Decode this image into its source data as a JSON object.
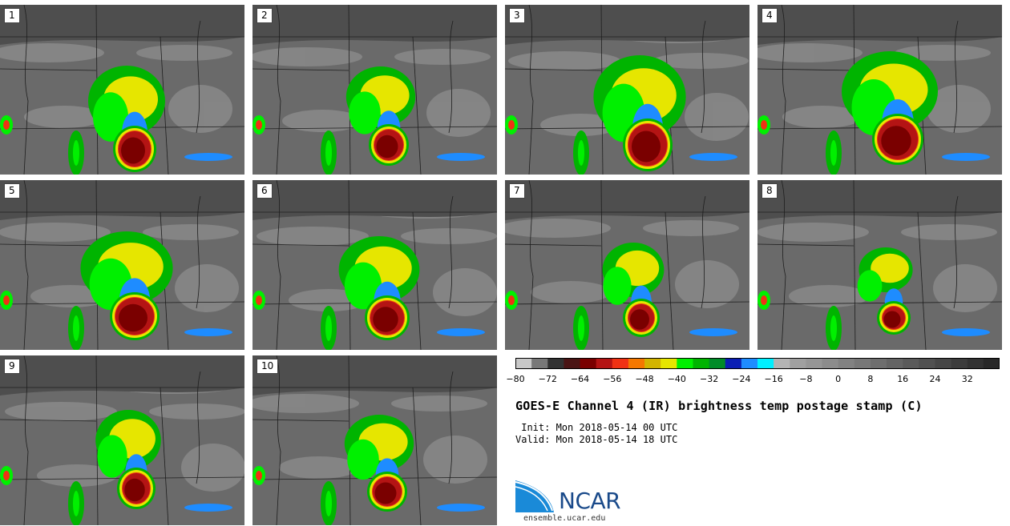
{
  "stamps": [
    {
      "label": "1",
      "core": [
        168,
        180,
        20,
        22
      ]
    },
    {
      "label": "2",
      "core": [
        170,
        175,
        18,
        19
      ]
    },
    {
      "label": "3",
      "core": [
        178,
        175,
        24,
        26
      ]
    },
    {
      "label": "4",
      "core": [
        175,
        168,
        25,
        25
      ]
    },
    {
      "label": "5",
      "core": [
        168,
        170,
        24,
        23
      ]
    },
    {
      "label": "6",
      "core": [
        168,
        172,
        21,
        21
      ]
    },
    {
      "label": "7",
      "core": [
        170,
        172,
        16,
        17
      ]
    },
    {
      "label": "8",
      "core": [
        170,
        172,
        14,
        14
      ]
    },
    {
      "label": "9",
      "core": [
        170,
        166,
        17,
        19
      ]
    },
    {
      "label": "10",
      "core": [
        168,
        170,
        18,
        18
      ]
    }
  ],
  "colorbar": {
    "min": -80,
    "max": 40,
    "step": 4,
    "ticks": [
      "−80",
      "−72",
      "−64",
      "−56",
      "−48",
      "−40",
      "−32",
      "−24",
      "−16",
      "−8",
      "0",
      "8",
      "16",
      "24",
      "32"
    ],
    "tick_values": [
      -80,
      -72,
      -64,
      -56,
      -48,
      -40,
      -32,
      -24,
      -16,
      -8,
      0,
      8,
      16,
      24,
      32
    ],
    "colors": [
      "#c8c8c8",
      "#787878",
      "#323232",
      "#4a1414",
      "#7a0000",
      "#b41414",
      "#f03214",
      "#f57800",
      "#d2b400",
      "#e6e600",
      "#00f000",
      "#00b400",
      "#008c28",
      "#0a1eb4",
      "#1e8cff",
      "#00f0ff",
      "#b4b4b4",
      "#a0a0a0",
      "#969696",
      "#8c8c8c",
      "#828282",
      "#787878",
      "#6e6e6e",
      "#646464",
      "#5a5a5a",
      "#505050",
      "#464646",
      "#3c3c3c",
      "#323232",
      "#282828"
    ]
  },
  "title": "GOES-E Channel 4 (IR) brightness temp postage stamp (C)",
  "init_line": " Init: Mon 2018-05-14 00 UTC",
  "valid_line": "Valid: Mon 2018-05-14 18 UTC",
  "logo": {
    "text": "NCAR",
    "url": "ensemble.ucar.edu",
    "color": "#1a4a8a"
  }
}
